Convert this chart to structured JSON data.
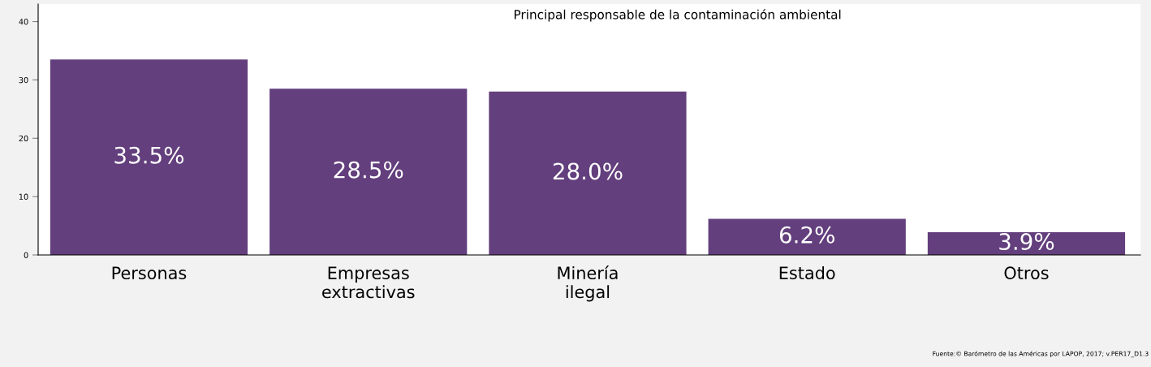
{
  "chart_data": {
    "type": "bar",
    "title": "Principal responsable de la contaminación ambiental",
    "categories": [
      "Personas",
      "Empresas\nextractivas",
      "Minería\nilegal",
      "Estado",
      "Otros"
    ],
    "values": [
      33.5,
      28.5,
      28.0,
      6.2,
      3.9
    ],
    "value_labels": [
      "33.5%",
      "28.5%",
      "28.0%",
      "6.2%",
      "3.9%"
    ],
    "color": "#633f7d",
    "ylim": [
      0,
      43
    ],
    "yticks": [
      0,
      10,
      20,
      30,
      40
    ],
    "grid": false,
    "annotations": [
      "Fuente:© Barómetro de las Américas por LAPOP, 2017; v.PER17_D1.3"
    ]
  }
}
